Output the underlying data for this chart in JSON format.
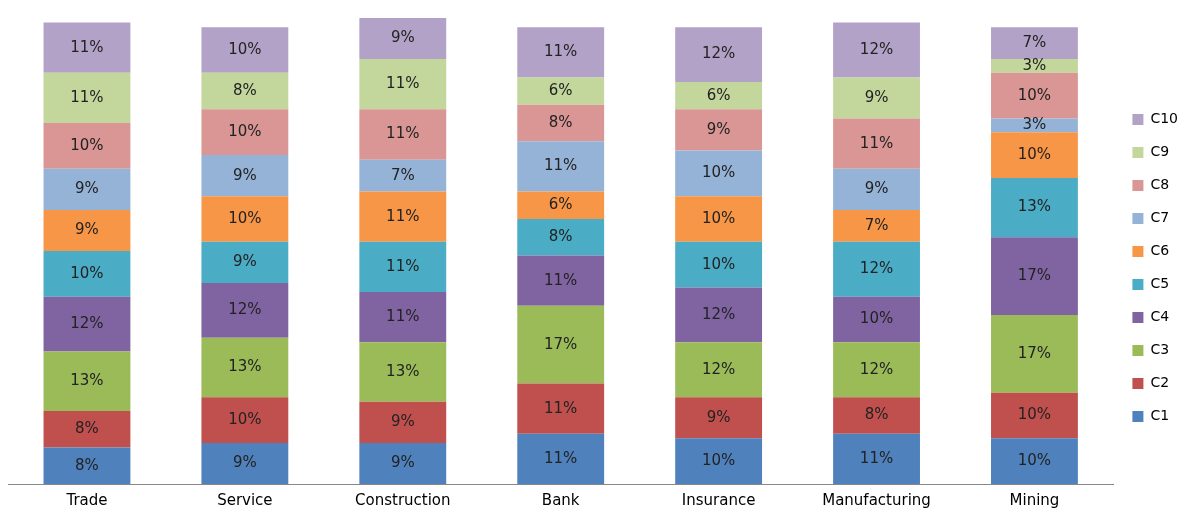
{
  "chart_data": {
    "type": "bar",
    "stacked": true,
    "legend": "right",
    "grid": false,
    "tick_labels": "x",
    "categories": [
      "Trade",
      "Service",
      "Construction",
      "Bank",
      "Insurance",
      "Manufacturing",
      "Mining"
    ],
    "series": [
      {
        "name": "C1",
        "color": "#4f81bd",
        "values": [
          8,
          9,
          9,
          11,
          10,
          11,
          10
        ],
        "value_labels": [
          "8%",
          "9%",
          "9%",
          "11%",
          "10%",
          "11%",
          "10%"
        ]
      },
      {
        "name": "C2",
        "color": "#c0504d",
        "values": [
          8,
          10,
          9,
          11,
          9,
          8,
          10
        ],
        "value_labels": [
          "8%",
          "10%",
          "9%",
          "11%",
          "9%",
          "8%",
          "10%"
        ]
      },
      {
        "name": "C3",
        "color": "#9bbb59",
        "values": [
          13,
          13,
          13,
          17,
          12,
          12,
          17
        ],
        "value_labels": [
          "13%",
          "13%",
          "13%",
          "17%",
          "12%",
          "12%",
          "17%"
        ]
      },
      {
        "name": "C4",
        "color": "#8064a2",
        "values": [
          12,
          12,
          11,
          11,
          12,
          10,
          17
        ],
        "value_labels": [
          "12%",
          "12%",
          "11%",
          "11%",
          "12%",
          "10%",
          "17%"
        ]
      },
      {
        "name": "C5",
        "color": "#4bacc6",
        "values": [
          10,
          9,
          11,
          8,
          10,
          12,
          13
        ],
        "value_labels": [
          "10%",
          "9%",
          "11%",
          "8%",
          "10%",
          "12%",
          "13%"
        ]
      },
      {
        "name": "C6",
        "color": "#f79646",
        "values": [
          9,
          10,
          11,
          6,
          10,
          7,
          10
        ],
        "value_labels": [
          "9%",
          "10%",
          "11%",
          "6%",
          "10%",
          "7%",
          "10%"
        ]
      },
      {
        "name": "C7",
        "color": "#95b3d7",
        "values": [
          9,
          9,
          7,
          11,
          10,
          9,
          3
        ],
        "value_labels": [
          "9%",
          "9%",
          "7%",
          "11%",
          "10%",
          "9%",
          "3%"
        ]
      },
      {
        "name": "C8",
        "color": "#d99694",
        "values": [
          10,
          10,
          11,
          8,
          9,
          11,
          10
        ],
        "value_labels": [
          "10%",
          "10%",
          "11%",
          "8%",
          "9%",
          "11%",
          "10%"
        ]
      },
      {
        "name": "C9",
        "color": "#c3d69b",
        "values": [
          11,
          8,
          11,
          6,
          6,
          9,
          3
        ],
        "value_labels": [
          "11%",
          "8%",
          "11%",
          "6%",
          "6%",
          "9%",
          "3%"
        ]
      },
      {
        "name": "C10",
        "color": "#b3a2c7",
        "values": [
          11,
          10,
          9,
          11,
          12,
          12,
          7
        ],
        "value_labels": [
          "11%",
          "10%",
          "9%",
          "11%",
          "12%",
          "12%",
          "7%"
        ]
      }
    ]
  }
}
